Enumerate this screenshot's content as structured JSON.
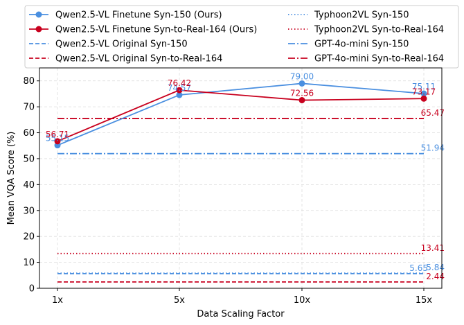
{
  "chart_data": {
    "type": "line",
    "title": "",
    "xlabel": "Data Scaling Factor",
    "ylabel": "Mean VQA Score (%)",
    "categories": [
      "1x",
      "5x",
      "10x",
      "15x"
    ],
    "ylim": [
      0,
      85
    ],
    "yticks": [
      0,
      10,
      20,
      30,
      40,
      50,
      60,
      70,
      80
    ],
    "grid": true,
    "legend_position": "top",
    "series": [
      {
        "name": "Qwen2.5-VL Finetune Syn-150 (Ours)",
        "values": [
          55.15,
          74.57,
          79.0,
          75.11
        ],
        "labels": [
          "55.15",
          "74.57",
          "79.00",
          "75.11"
        ],
        "color": "#4a8fe0",
        "style": "solid",
        "marker": true
      },
      {
        "name": "Qwen2.5-VL Finetune Syn-to-Real-164 (Ours)",
        "values": [
          56.71,
          76.42,
          72.56,
          73.17
        ],
        "labels": [
          "56.71",
          "76.42",
          "72.56",
          "73.17"
        ],
        "color": "#c8001e",
        "style": "solid",
        "marker": true
      },
      {
        "name": "Qwen2.5-VL Original Syn-150",
        "values": [
          5.65,
          5.65,
          5.65,
          5.65
        ],
        "labels": [
          "",
          "",
          "",
          "5.65"
        ],
        "color": "#4a8fe0",
        "style": "dashed",
        "marker": false
      },
      {
        "name": "Qwen2.5-VL Original Syn-to-Real-164",
        "values": [
          2.44,
          2.44,
          2.44,
          2.44
        ],
        "labels": [
          "",
          "",
          "",
          "2.44"
        ],
        "color": "#c8001e",
        "style": "dashed",
        "marker": false
      },
      {
        "name": "Typhoon2VL Syn-150",
        "values": [
          5.84,
          5.84,
          5.84,
          5.84
        ],
        "labels": [
          "",
          "",
          "",
          "5.84"
        ],
        "color": "#4a8fe0",
        "style": "dotted",
        "marker": false
      },
      {
        "name": "Typhoon2VL Syn-to-Real-164",
        "values": [
          13.41,
          13.41,
          13.41,
          13.41
        ],
        "labels": [
          "",
          "",
          "",
          "13.41"
        ],
        "color": "#c8001e",
        "style": "dotted",
        "marker": false
      },
      {
        "name": "GPT-4o-mini Syn-150",
        "values": [
          51.94,
          51.94,
          51.94,
          51.94
        ],
        "labels": [
          "",
          "",
          "",
          "51.94"
        ],
        "color": "#4a8fe0",
        "style": "dashdot",
        "marker": false
      },
      {
        "name": "GPT-4o-mini Syn-to-Real-164",
        "values": [
          65.47,
          65.47,
          65.47,
          65.47
        ],
        "labels": [
          "",
          "",
          "",
          "65.47"
        ],
        "color": "#c8001e",
        "style": "dashdot",
        "marker": false
      }
    ]
  }
}
